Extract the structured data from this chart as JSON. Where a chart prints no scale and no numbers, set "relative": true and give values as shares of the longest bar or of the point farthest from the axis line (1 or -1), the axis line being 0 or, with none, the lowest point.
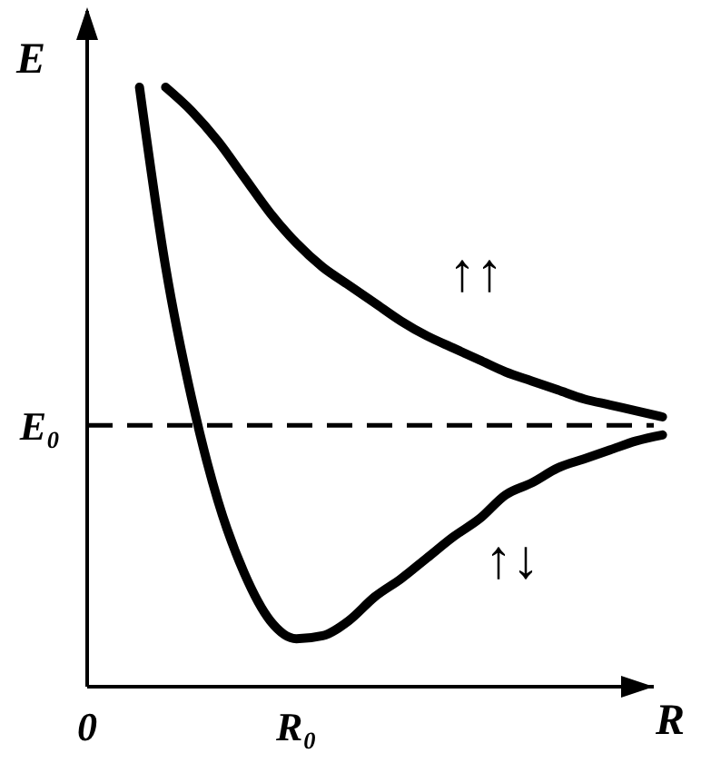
{
  "chart_data": {
    "type": "line",
    "relative": true,
    "ylabel": "E",
    "xlabel": "R",
    "categories": [
      "0",
      null,
      null,
      null,
      null,
      null,
      null,
      null,
      "R₀",
      null,
      null,
      null,
      null,
      null,
      null,
      null,
      null,
      null,
      null,
      null,
      null,
      null,
      null
    ],
    "series": [
      {
        "color": "#000000",
        "values": [
          null,
          null,
          1.0,
          0.7,
          0.48,
          0.31,
          0.19,
          0.11,
          0.08,
          0.085,
          0.11,
          0.15,
          0.18,
          0.215,
          0.25,
          0.28,
          0.32,
          0.34,
          0.365,
          0.38,
          0.395,
          0.41,
          0.42
        ]
      },
      {
        "color": "#000000",
        "values": [
          null,
          null,
          null,
          1.0,
          0.96,
          0.91,
          0.85,
          0.79,
          0.74,
          0.7,
          0.67,
          0.64,
          0.61,
          0.585,
          0.565,
          0.545,
          0.525,
          0.51,
          0.495,
          0.48,
          0.47,
          0.46,
          0.45
        ]
      }
    ],
    "ref_lines": [
      {
        "axis": "y",
        "value": 0.436,
        "label": "E₀",
        "line_style": "dashed",
        "color": "#000000"
      }
    ],
    "annotations": [
      "↑↑",
      "↑↓"
    ],
    "line_style": "solid",
    "marker": "none"
  }
}
